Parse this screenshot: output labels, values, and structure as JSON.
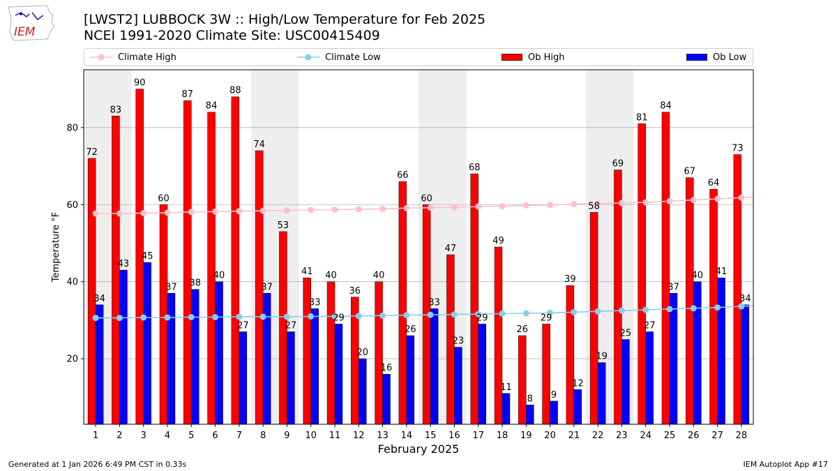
{
  "logo": {
    "text": "IEM"
  },
  "header": {
    "title_line1": "[LWST2] LUBBOCK 3W :: High/Low Temperature for Feb 2025",
    "title_line2": "NCEI 1991-2020 Climate Site: USC00415409"
  },
  "legend": {
    "placement": "top",
    "items": [
      {
        "label": "Climate High",
        "kind": "line-marker",
        "color": "#ffc0cb"
      },
      {
        "label": "Climate Low",
        "kind": "line-marker",
        "color": "#87ceeb"
      },
      {
        "label": "Ob High",
        "kind": "bar",
        "color": "#ff0000"
      },
      {
        "label": "Ob Low",
        "kind": "bar",
        "color": "#0000ff"
      }
    ]
  },
  "chart_data": {
    "type": "bar",
    "xlabel": "February 2025",
    "ylabel": "Temperature °F",
    "ylim": [
      3,
      95
    ],
    "yticks": [
      20,
      40,
      60,
      80
    ],
    "grid": "horizontal",
    "weekend_shading_days": [
      1,
      2,
      8,
      9,
      15,
      16,
      22,
      23
    ],
    "categories": [
      "1",
      "2",
      "3",
      "4",
      "5",
      "6",
      "7",
      "8",
      "9",
      "10",
      "11",
      "12",
      "13",
      "14",
      "15",
      "16",
      "17",
      "18",
      "19",
      "20",
      "21",
      "22",
      "23",
      "24",
      "25",
      "26",
      "27",
      "28"
    ],
    "series": [
      {
        "name": "Ob High",
        "kind": "bar",
        "color": "#ff0000",
        "values": [
          72,
          83,
          90,
          60,
          87,
          84,
          88,
          74,
          53,
          41,
          40,
          36,
          40,
          66,
          60,
          47,
          68,
          49,
          26,
          29,
          39,
          58,
          69,
          81,
          84,
          67,
          64,
          73
        ]
      },
      {
        "name": "Ob Low",
        "kind": "bar",
        "color": "#0000ff",
        "values": [
          34,
          43,
          45,
          37,
          38,
          40,
          27,
          37,
          27,
          33,
          29,
          20,
          16,
          26,
          33,
          23,
          29,
          11,
          8,
          9,
          12,
          19,
          25,
          27,
          37,
          40,
          41,
          34
        ]
      },
      {
        "name": "Climate High",
        "kind": "line",
        "color": "#ffc0cb",
        "values": [
          57.7,
          57.7,
          57.8,
          57.9,
          58.1,
          58.2,
          58.3,
          58.4,
          58.5,
          58.6,
          58.7,
          58.8,
          58.9,
          59.1,
          59.2,
          59.3,
          59.5,
          59.6,
          59.8,
          59.9,
          60.1,
          60.3,
          60.4,
          60.6,
          60.9,
          61.2,
          61.5,
          61.8
        ]
      },
      {
        "name": "Climate Low",
        "kind": "line",
        "color": "#87ceeb",
        "values": [
          30.6,
          30.6,
          30.7,
          30.7,
          30.8,
          30.8,
          30.9,
          30.9,
          30.9,
          31.0,
          31.0,
          31.1,
          31.2,
          31.3,
          31.4,
          31.5,
          31.6,
          31.7,
          31.8,
          31.9,
          32.1,
          32.3,
          32.5,
          32.7,
          32.9,
          33.1,
          33.3,
          33.6
        ]
      }
    ]
  },
  "footer": {
    "left": "Generated at 1 Jan 2026 6:49 PM CST in 0.33s",
    "right": "IEM Autoplot App #17"
  }
}
